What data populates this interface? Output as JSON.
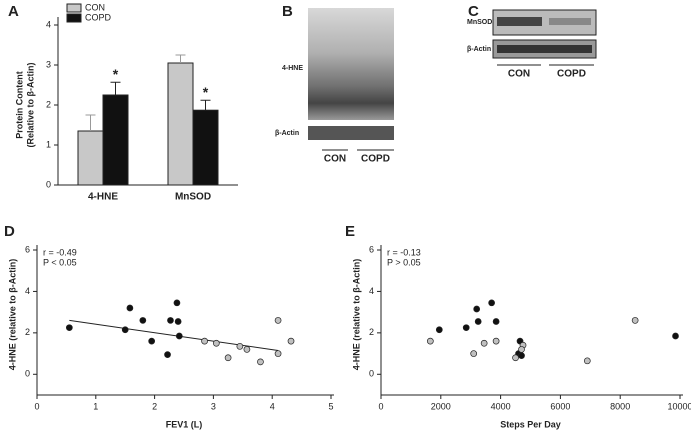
{
  "chart_data": [
    {
      "type": "bar",
      "panel": "A",
      "ylabel": [
        "Protein Content",
        "(Relative to β-Actin)"
      ],
      "categories": [
        "4-HNE",
        "MnSOD"
      ],
      "series": [
        {
          "name": "CON",
          "color": "#c8c8c8",
          "values": [
            1.35,
            3.05
          ],
          "errors": [
            0.4,
            0.2
          ]
        },
        {
          "name": "COPD",
          "color": "#111111",
          "values": [
            2.25,
            1.87
          ],
          "errors": [
            0.32,
            0.25
          ],
          "significance": [
            "*",
            "*"
          ]
        }
      ],
      "ylim": [
        0,
        4
      ],
      "yticks": [
        0,
        1,
        2,
        3,
        4
      ]
    },
    {
      "type": "scatter",
      "panel": "D",
      "xlabel": "FEV1 (L)",
      "ylabel": "4-HNE (relative to β-Actin)",
      "annotations": [
        "r = -0.49",
        "P < 0.05"
      ],
      "series": [
        {
          "color": "#111111",
          "x": [
            0.55,
            1.5,
            1.58,
            1.8,
            1.95,
            2.22,
            2.27,
            2.38,
            2.4,
            2.42
          ],
          "values": [
            2.25,
            2.15,
            3.2,
            2.6,
            1.6,
            0.95,
            2.6,
            3.45,
            2.55,
            1.85
          ]
        },
        {
          "color": "#c0c0c0",
          "x": [
            2.85,
            3.05,
            3.25,
            3.45,
            3.57,
            3.8,
            4.1,
            4.1,
            4.32
          ],
          "values": [
            1.6,
            1.5,
            0.8,
            1.35,
            1.2,
            0.6,
            2.6,
            1.0,
            1.6
          ]
        }
      ],
      "trendline": {
        "x": [
          0.55,
          4.1
        ],
        "values": [
          2.6,
          1.15
        ]
      },
      "xlim": [
        0,
        5
      ],
      "xticks": [
        0,
        1,
        2,
        3,
        4,
        5
      ],
      "ylim": [
        -1,
        6
      ],
      "yticks": [
        0,
        2,
        4,
        6
      ]
    },
    {
      "type": "scatter",
      "panel": "E",
      "xlabel": "Steps Per Day",
      "ylabel": "4-HNE (relative to β-Actin)",
      "annotations": [
        "r = -0.13",
        "P > 0.05"
      ],
      "series": [
        {
          "color": "#111111",
          "x": [
            1950,
            2850,
            3200,
            3250,
            3700,
            3850,
            4650,
            4600,
            4700,
            9850
          ],
          "values": [
            2.15,
            2.25,
            3.15,
            2.55,
            3.45,
            2.55,
            1.6,
            1.0,
            0.9,
            1.85
          ]
        },
        {
          "color": "#c0c0c0",
          "x": [
            1650,
            3100,
            3450,
            3850,
            4500,
            4750,
            4700,
            6900,
            8500
          ],
          "values": [
            1.6,
            1.0,
            1.5,
            1.6,
            0.8,
            1.4,
            1.2,
            0.65,
            2.6
          ]
        }
      ],
      "xlim": [
        0,
        10000
      ],
      "xticks": [
        0,
        2000,
        4000,
        6000,
        8000,
        10000
      ],
      "ylim": [
        -1,
        6
      ],
      "yticks": [
        0,
        2,
        4,
        6
      ]
    }
  ],
  "blots": [
    {
      "panel": "B",
      "bands": [
        "4-HNE",
        "β-Actin"
      ],
      "groups": [
        "CON",
        "COPD"
      ]
    },
    {
      "panel": "C",
      "bands": [
        "MnSOD",
        "β-Actin"
      ],
      "groups": [
        "CON",
        "COPD"
      ]
    }
  ]
}
